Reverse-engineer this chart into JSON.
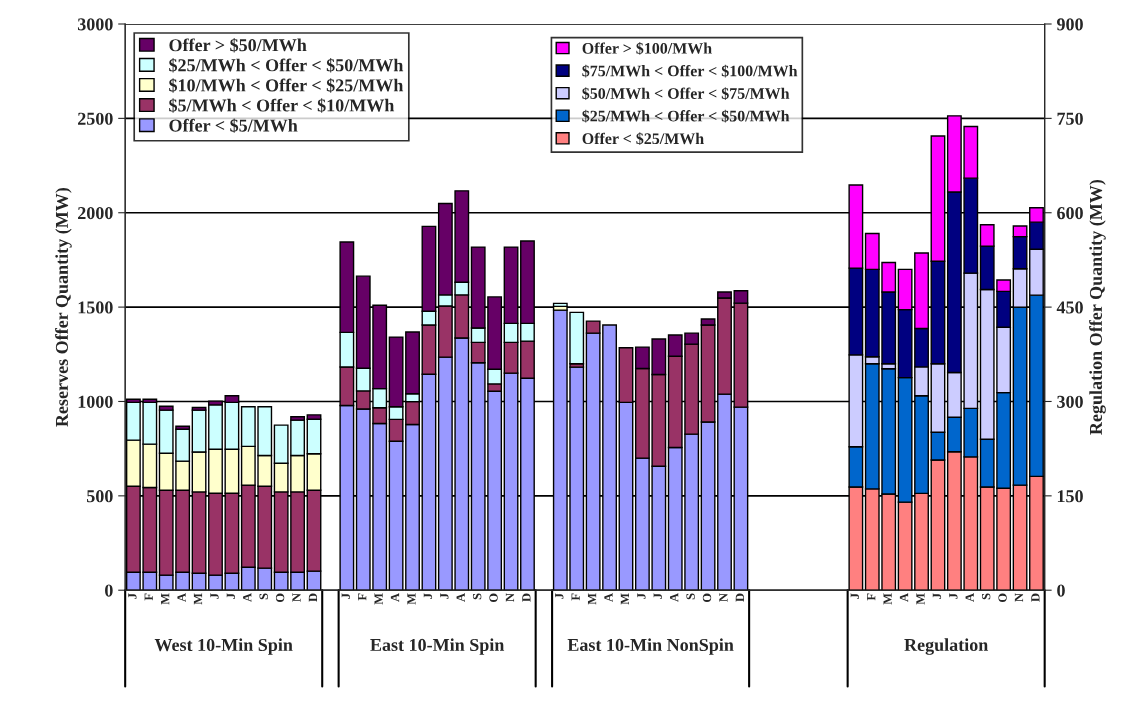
{
  "chart_data": {
    "type": "bar",
    "stacked": true,
    "ylabel": "Reserves Offer Quantity (MW)",
    "y2label": "Regulation Offer Quantity (MW)",
    "categories": [
      "J",
      "F",
      "M",
      "A",
      "M",
      "J",
      "J",
      "A",
      "S",
      "O",
      "N",
      "D",
      null,
      "J",
      "F",
      "M",
      "A",
      "M",
      "J",
      "J",
      "A",
      "S",
      "O",
      "N",
      "D",
      null,
      "J",
      "F",
      "M",
      "A",
      "M",
      "J",
      "J",
      "A",
      "S",
      "O",
      "N",
      "D",
      null,
      null,
      null,
      null,
      null,
      null,
      "J",
      "F",
      "M",
      "A",
      "M",
      "J",
      "J",
      "A",
      "S",
      "O",
      "N",
      "D"
    ],
    "annotations": [
      "West 10-Min Spin",
      "East 10-Min Spin",
      "East 10-Min NonSpin",
      "Regulation"
    ],
    "ylim": [
      0,
      3000
    ],
    "yticks": [
      0,
      500,
      1000,
      1500,
      2000,
      2500,
      3000
    ],
    "y2lim": [
      0,
      900
    ],
    "y2ticks": [
      0,
      150,
      300,
      450,
      600,
      750,
      900
    ],
    "grid": "y",
    "legend": "top",
    "series": [
      {
        "name": "Offer < $5/MWh",
        "color": "#9999ff",
        "values": [
          95,
          95,
          80,
          95,
          90,
          80,
          90,
          122,
          117,
          95,
          95,
          101,
          null,
          979,
          960,
          883,
          789,
          878,
          1144,
          1235,
          1336,
          1205,
          1054,
          1150,
          1123,
          null,
          1484,
          1182,
          1362,
          1405,
          995,
          700,
          657,
          756,
          827,
          891,
          1039,
          970,
          null,
          null,
          null,
          null,
          null,
          null,
          null,
          null,
          null,
          null,
          null,
          null,
          null,
          null,
          null,
          null,
          null,
          null
        ]
      },
      {
        "name": "$5/MWh < Offer < $10/MWh",
        "color": "#993366",
        "values": [
          456,
          449,
          450,
          435,
          431,
          434,
          424,
          435,
          434,
          426,
          426,
          429,
          null,
          204,
          96,
          84,
          116,
          121,
          261,
          271,
          229,
          108,
          39,
          163,
          197,
          null,
          0,
          18,
          64,
          0,
          290,
          475,
          486,
          484,
          477,
          514,
          509,
          551,
          null,
          null,
          null,
          null,
          null,
          null,
          null,
          null,
          null,
          null,
          null,
          null,
          null,
          null,
          null,
          null,
          null,
          null
        ]
      },
      {
        "name": "$10/MWh < Offer < $25/MWh",
        "color": "#ffffcc",
        "values": [
          244,
          230,
          196,
          154,
          211,
          233,
          233,
          205,
          163,
          152,
          193,
          193,
          null,
          0,
          0,
          0,
          0,
          0,
          0,
          0,
          0,
          0,
          0,
          0,
          0,
          null,
          20,
          0,
          0,
          0,
          0,
          0,
          0,
          0,
          0,
          0,
          0,
          0,
          null,
          null,
          null,
          null,
          null,
          null,
          null,
          null,
          null,
          null,
          null,
          null,
          null,
          null,
          null,
          null,
          null,
          null
        ]
      },
      {
        "name": "$25/MWh < Offer < $50/MWh",
        "color": "#ccffff",
        "values": [
          200,
          221,
          228,
          169,
          222,
          235,
          248,
          210,
          258,
          202,
          187,
          183,
          null,
          183,
          120,
          101,
          67,
          42,
          73,
          59,
          67,
          76,
          78,
          101,
          94,
          null,
          16,
          272,
          0,
          0,
          0,
          0,
          0,
          0,
          0,
          0,
          0,
          0,
          null,
          null,
          null,
          null,
          null,
          null,
          null,
          null,
          null,
          null,
          null,
          null,
          null,
          null,
          null,
          null,
          null,
          null
        ]
      },
      {
        "name": "Offer > $50/MWh",
        "color": "#660066",
        "values": [
          17,
          17,
          21,
          16,
          14,
          20,
          35,
          0,
          0,
          0,
          18,
          23,
          null,
          479,
          488,
          442,
          369,
          327,
          450,
          484,
          484,
          429,
          383,
          404,
          436,
          null,
          0,
          0,
          0,
          0,
          0,
          113,
          188,
          112,
          58,
          32,
          32,
          66,
          null,
          null,
          null,
          null,
          null,
          null,
          null,
          null,
          null,
          null,
          null,
          null,
          null,
          null,
          null,
          null,
          null,
          null
        ]
      },
      {
        "name": "Offer < $25/MWh",
        "color": "#ff8080",
        "axis": "y2",
        "values": [
          null,
          null,
          null,
          null,
          null,
          null,
          null,
          null,
          null,
          null,
          null,
          null,
          null,
          null,
          null,
          null,
          null,
          null,
          null,
          null,
          null,
          null,
          null,
          null,
          null,
          null,
          null,
          null,
          null,
          null,
          null,
          null,
          null,
          null,
          null,
          null,
          null,
          null,
          null,
          null,
          null,
          null,
          null,
          null,
          164,
          161,
          153,
          140,
          154,
          207,
          220,
          212,
          164,
          162,
          167,
          181
        ]
      },
      {
        "name": "$25/MWh < Offer < $50/MWh",
        "color": "#0066cc",
        "axis": "y2",
        "values": [
          null,
          null,
          null,
          null,
          null,
          null,
          null,
          null,
          null,
          null,
          null,
          null,
          null,
          null,
          null,
          null,
          null,
          null,
          null,
          null,
          null,
          null,
          null,
          null,
          null,
          null,
          null,
          null,
          null,
          null,
          null,
          null,
          null,
          null,
          null,
          null,
          null,
          null,
          null,
          null,
          null,
          null,
          null,
          null,
          64,
          199,
          199,
          198,
          155,
          44,
          55,
          77,
          76,
          152,
          283,
          288
        ]
      },
      {
        "name": "$50/MWh < Offer < $75/MWh",
        "color": "#ccccff",
        "axis": "y2",
        "values": [
          null,
          null,
          null,
          null,
          null,
          null,
          null,
          null,
          null,
          null,
          null,
          null,
          null,
          null,
          null,
          null,
          null,
          null,
          null,
          null,
          null,
          null,
          null,
          null,
          null,
          null,
          null,
          null,
          null,
          null,
          null,
          null,
          null,
          null,
          null,
          null,
          null,
          null,
          null,
          null,
          null,
          null,
          null,
          null,
          146,
          11,
          8,
          0,
          46,
          109,
          71,
          215,
          238,
          104,
          61,
          73
        ]
      },
      {
        "name": "$75/MWh < Offer < $100/MWh",
        "color": "#000080",
        "axis": "y2",
        "values": [
          null,
          null,
          null,
          null,
          null,
          null,
          null,
          null,
          null,
          null,
          null,
          null,
          null,
          null,
          null,
          null,
          null,
          null,
          null,
          null,
          null,
          null,
          null,
          null,
          null,
          null,
          null,
          null,
          null,
          null,
          null,
          null,
          null,
          null,
          null,
          null,
          null,
          null,
          null,
          null,
          null,
          null,
          null,
          null,
          138,
          139,
          114,
          108,
          61,
          163,
          287,
          151,
          69,
          57,
          51,
          43
        ]
      },
      {
        "name": "Offer > $100/MWh",
        "color": "#ff00ff",
        "axis": "y2",
        "values": [
          null,
          null,
          null,
          null,
          null,
          null,
          null,
          null,
          null,
          null,
          null,
          null,
          null,
          null,
          null,
          null,
          null,
          null,
          null,
          null,
          null,
          null,
          null,
          null,
          null,
          null,
          null,
          null,
          null,
          null,
          null,
          null,
          null,
          null,
          null,
          null,
          null,
          null,
          null,
          null,
          null,
          null,
          null,
          null,
          132,
          57,
          47,
          64,
          120,
          199,
          121,
          82,
          34,
          18,
          17,
          23
        ]
      }
    ]
  }
}
